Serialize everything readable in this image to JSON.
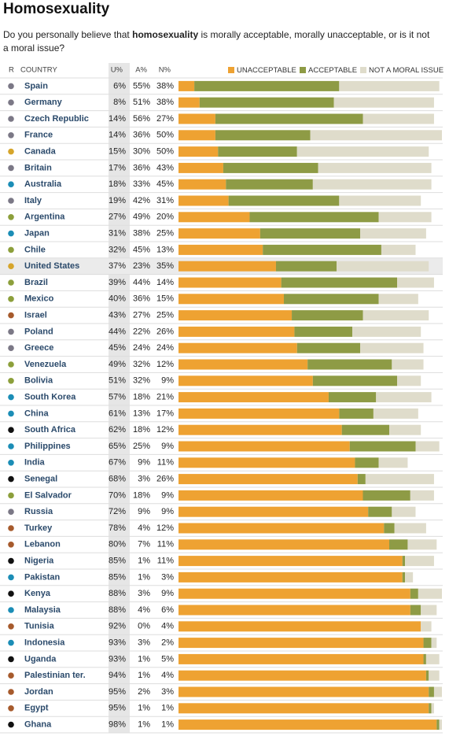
{
  "chart_data": {
    "type": "bar",
    "stacked": true,
    "orientation": "horizontal",
    "title": "Homosexuality",
    "subtitle": [
      "Do you personally believe that ",
      "homosexuality",
      " is morally acceptable, morally unacceptable, or is it not",
      "a moral issue?"
    ],
    "row_header": "R",
    "category_header": "COUNTRY",
    "columns": [
      "U%",
      "A%",
      "N%"
    ],
    "highlight": "United States",
    "xlim": [
      0,
      100
    ],
    "categories": [
      "Spain",
      "Germany",
      "Czech Republic",
      "France",
      "Canada",
      "Britain",
      "Australia",
      "Italy",
      "Argentina",
      "Japan",
      "Chile",
      "United States",
      "Brazil",
      "Mexico",
      "Israel",
      "Poland",
      "Greece",
      "Venezuela",
      "Bolivia",
      "South Korea",
      "China",
      "South Africa",
      "Philippines",
      "India",
      "Senegal",
      "El Salvador",
      "Russia",
      "Turkey",
      "Lebanon",
      "Nigeria",
      "Pakistan",
      "Kenya",
      "Malaysia",
      "Tunisia",
      "Indonesia",
      "Uganda",
      "Palestinian ter.",
      "Jordan",
      "Egypt",
      "Ghana"
    ],
    "dot_colors": [
      "#7b7886",
      "#7b7886",
      "#7b7886",
      "#7b7886",
      "#d6a52b",
      "#7b7886",
      "#1b8db6",
      "#7b7886",
      "#8c9f3b",
      "#1b8db6",
      "#8c9f3b",
      "#d6a52b",
      "#8c9f3b",
      "#8c9f3b",
      "#a65a2c",
      "#7b7886",
      "#7b7886",
      "#8c9f3b",
      "#8c9f3b",
      "#1b8db6",
      "#1b8db6",
      "#111111",
      "#1b8db6",
      "#1b8db6",
      "#111111",
      "#8c9f3b",
      "#7b7886",
      "#a65a2c",
      "#a65a2c",
      "#111111",
      "#1b8db6",
      "#111111",
      "#1b8db6",
      "#a65a2c",
      "#1b8db6",
      "#111111",
      "#a65a2c",
      "#a65a2c",
      "#a65a2c",
      "#111111"
    ],
    "series": [
      {
        "name": "UNACCEPTABLE",
        "color": "#eea232",
        "values": [
          6,
          8,
          14,
          14,
          15,
          17,
          18,
          19,
          27,
          31,
          32,
          37,
          39,
          40,
          43,
          44,
          45,
          49,
          51,
          57,
          61,
          62,
          65,
          67,
          68,
          70,
          72,
          78,
          80,
          85,
          85,
          88,
          88,
          92,
          93,
          93,
          94,
          95,
          95,
          98
        ],
        "value_labels": [
          "6%",
          "8%",
          "14%",
          "14%",
          "15%",
          "17%",
          "18%",
          "19%",
          "27%",
          "31%",
          "32%",
          "37%",
          "39%",
          "40%",
          "43%",
          "44%",
          "45%",
          "49%",
          "51%",
          "57%",
          "61%",
          "62%",
          "65%",
          "67%",
          "68%",
          "70%",
          "72%",
          "78%",
          "80%",
          "85%",
          "85%",
          "88%",
          "88%",
          "92%",
          "93%",
          "93%",
          "94%",
          "95%",
          "95%",
          "98%"
        ]
      },
      {
        "name": "ACCEPTABLE",
        "color": "#8e9b45",
        "values": [
          55,
          51,
          56,
          36,
          30,
          36,
          33,
          42,
          49,
          38,
          45,
          23,
          44,
          36,
          27,
          22,
          24,
          32,
          32,
          18,
          13,
          18,
          25,
          9,
          3,
          18,
          9,
          4,
          7,
          1,
          1,
          3,
          4,
          0,
          3,
          1,
          1,
          2,
          1,
          1
        ],
        "value_labels": [
          "55%",
          "51%",
          "56%",
          "36%",
          "30%",
          "36%",
          "33%",
          "42%",
          "49%",
          "38%",
          "45%",
          "23%",
          "44%",
          "36%",
          "27%",
          "22%",
          "24%",
          "32%",
          "32%",
          "18%",
          "13%",
          "18%",
          "25%",
          "9%",
          "3%",
          "18%",
          "9%",
          "4%",
          "7%",
          "1%",
          "1%",
          "3%",
          "4%",
          "0%",
          "3%",
          "1%",
          "1%",
          "2%",
          "1%",
          "1%"
        ]
      },
      {
        "name": "NOT A MORAL ISSUE",
        "color": "#dfdccb",
        "values": [
          38,
          38,
          27,
          50,
          50,
          43,
          45,
          31,
          20,
          25,
          13,
          35,
          14,
          15,
          25,
          26,
          24,
          12,
          9,
          21,
          17,
          12,
          9,
          11,
          26,
          9,
          9,
          12,
          11,
          11,
          3,
          9,
          6,
          4,
          2,
          5,
          4,
          3,
          1,
          1
        ],
        "value_labels": [
          "38%",
          "38%",
          "27%",
          "50%",
          "50%",
          "43%",
          "45%",
          "31%",
          "20%",
          "25%",
          "13%",
          "35%",
          "14%",
          "15%",
          "25%",
          "26%",
          "24%",
          "12%",
          "9%",
          "21%",
          "17%",
          "12%",
          "9%",
          "11%",
          "26%",
          "9%",
          "9%",
          "12%",
          "11%",
          "11%",
          "3%",
          "9%",
          "6%",
          "4%",
          "2%",
          "5%",
          "4%",
          "3%",
          "1%",
          "1%"
        ]
      }
    ]
  }
}
